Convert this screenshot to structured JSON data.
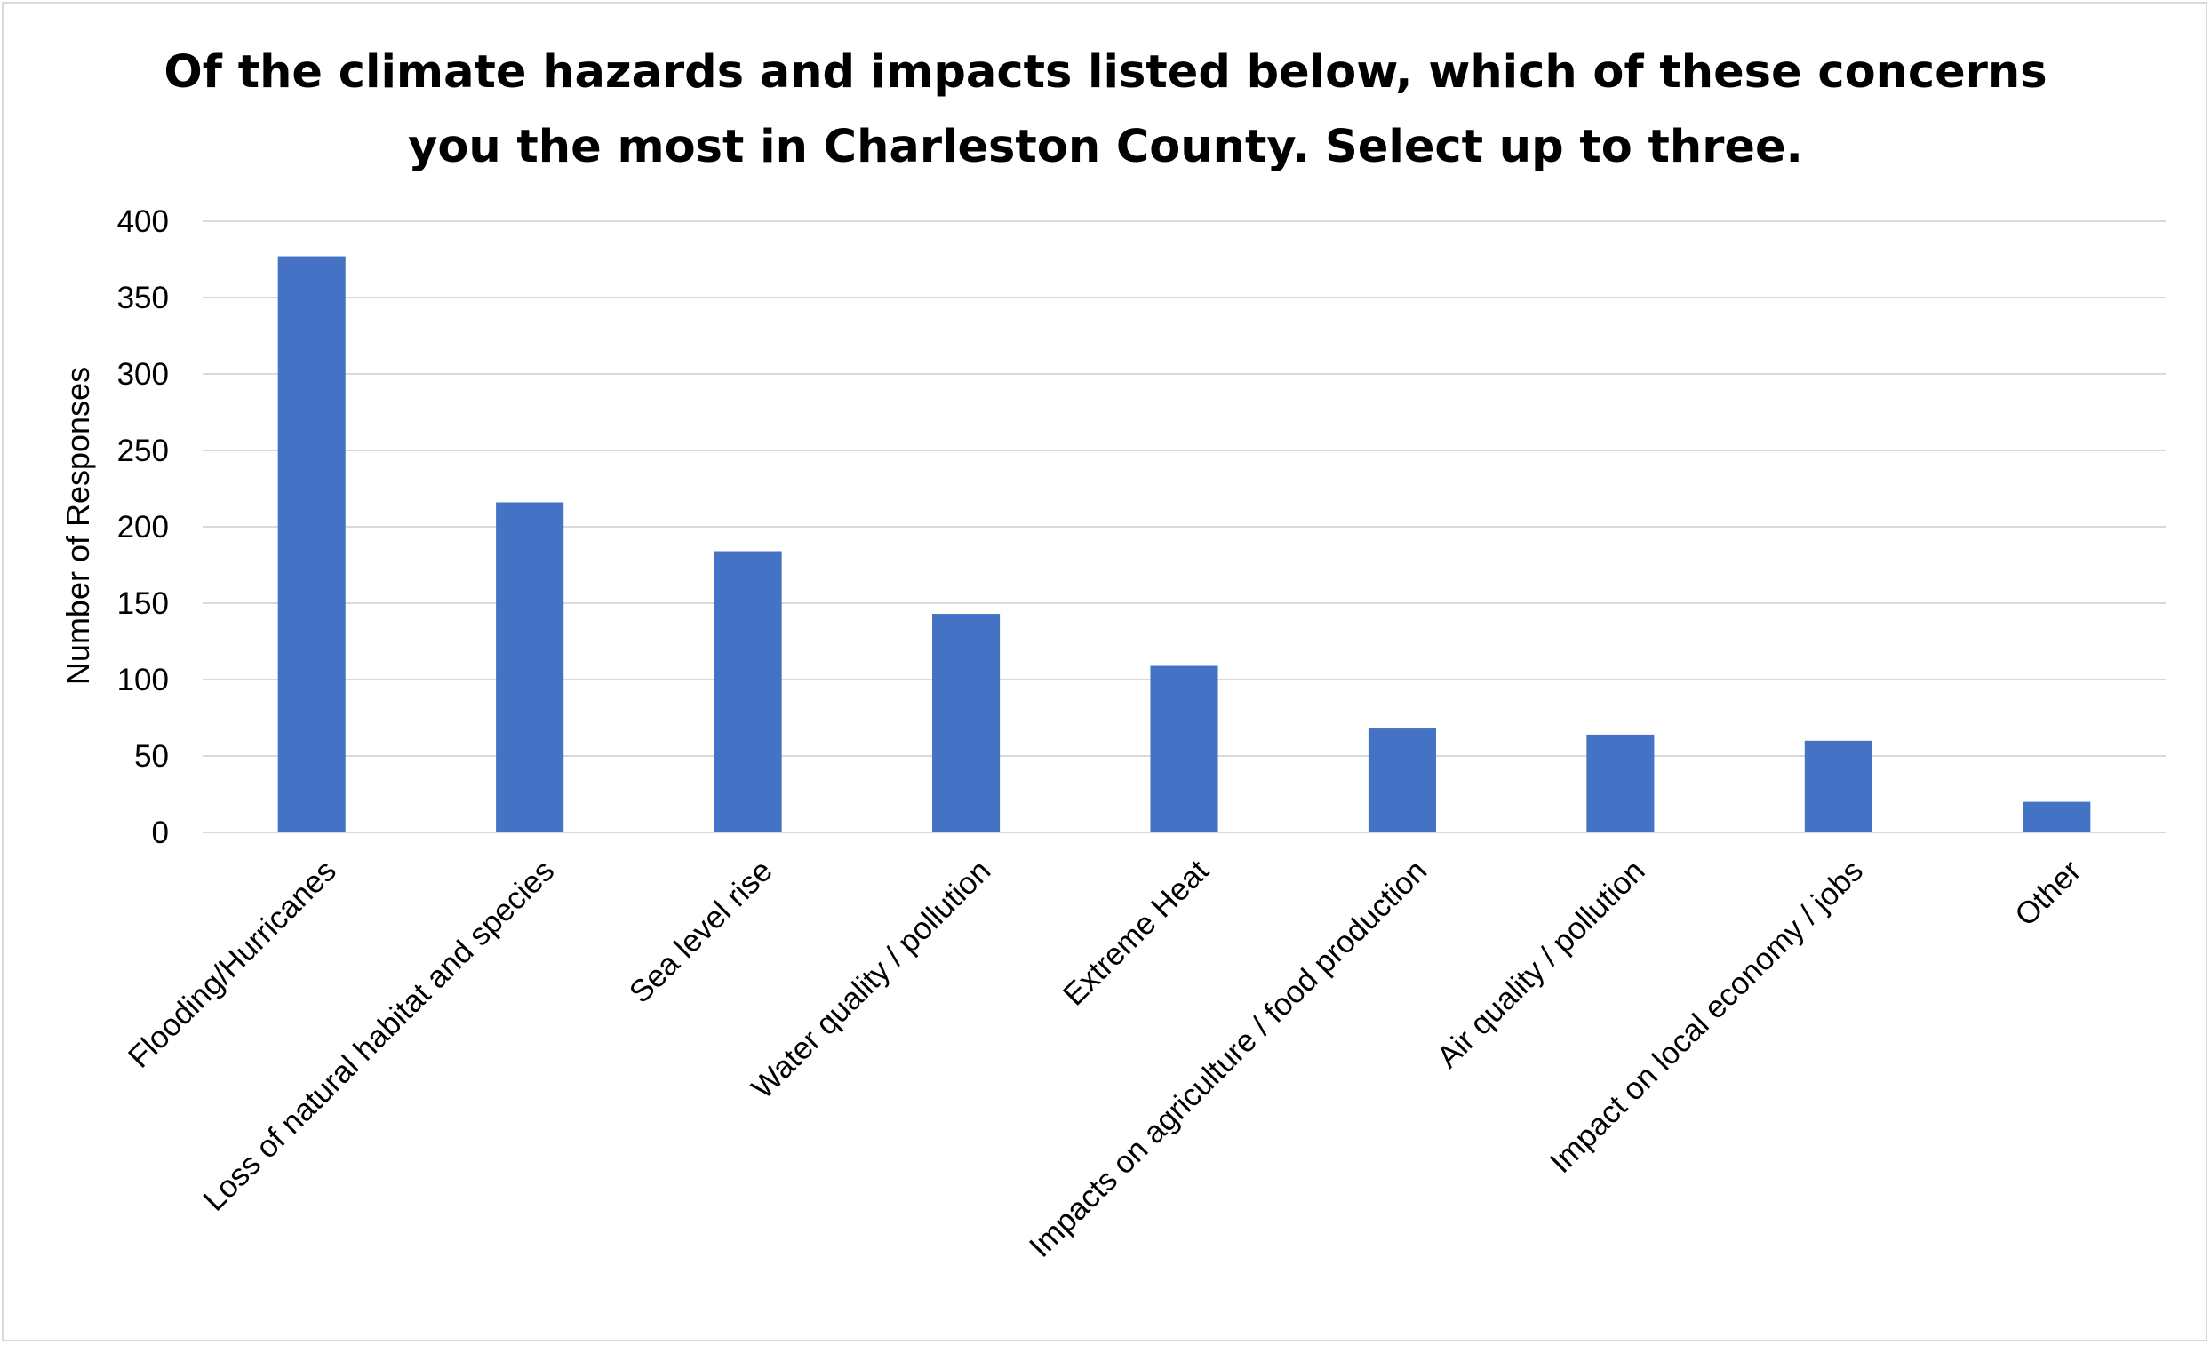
{
  "chart_data": {
    "type": "bar",
    "title_lines": [
      "Of the climate hazards and impacts listed below, which of these concerns",
      "you the most in Charleston County. Select up to three."
    ],
    "xlabel": "",
    "ylabel": "Number of Responses",
    "ylim": [
      0,
      400
    ],
    "yticks": [
      0,
      50,
      100,
      150,
      200,
      250,
      300,
      350,
      400
    ],
    "grid": true,
    "legend": "none",
    "bar_color": "#4472c4",
    "categories": [
      "Flooding/Hurricanes",
      "Loss of natural habitat and species",
      "Sea level rise",
      "Water quality / pollution",
      "Extreme Heat",
      "Impacts on agriculture / food production",
      "Air quality / pollution",
      "Impact on local economy / jobs",
      "Other"
    ],
    "values": [
      377,
      216,
      184,
      143,
      109,
      68,
      64,
      60,
      20
    ]
  }
}
